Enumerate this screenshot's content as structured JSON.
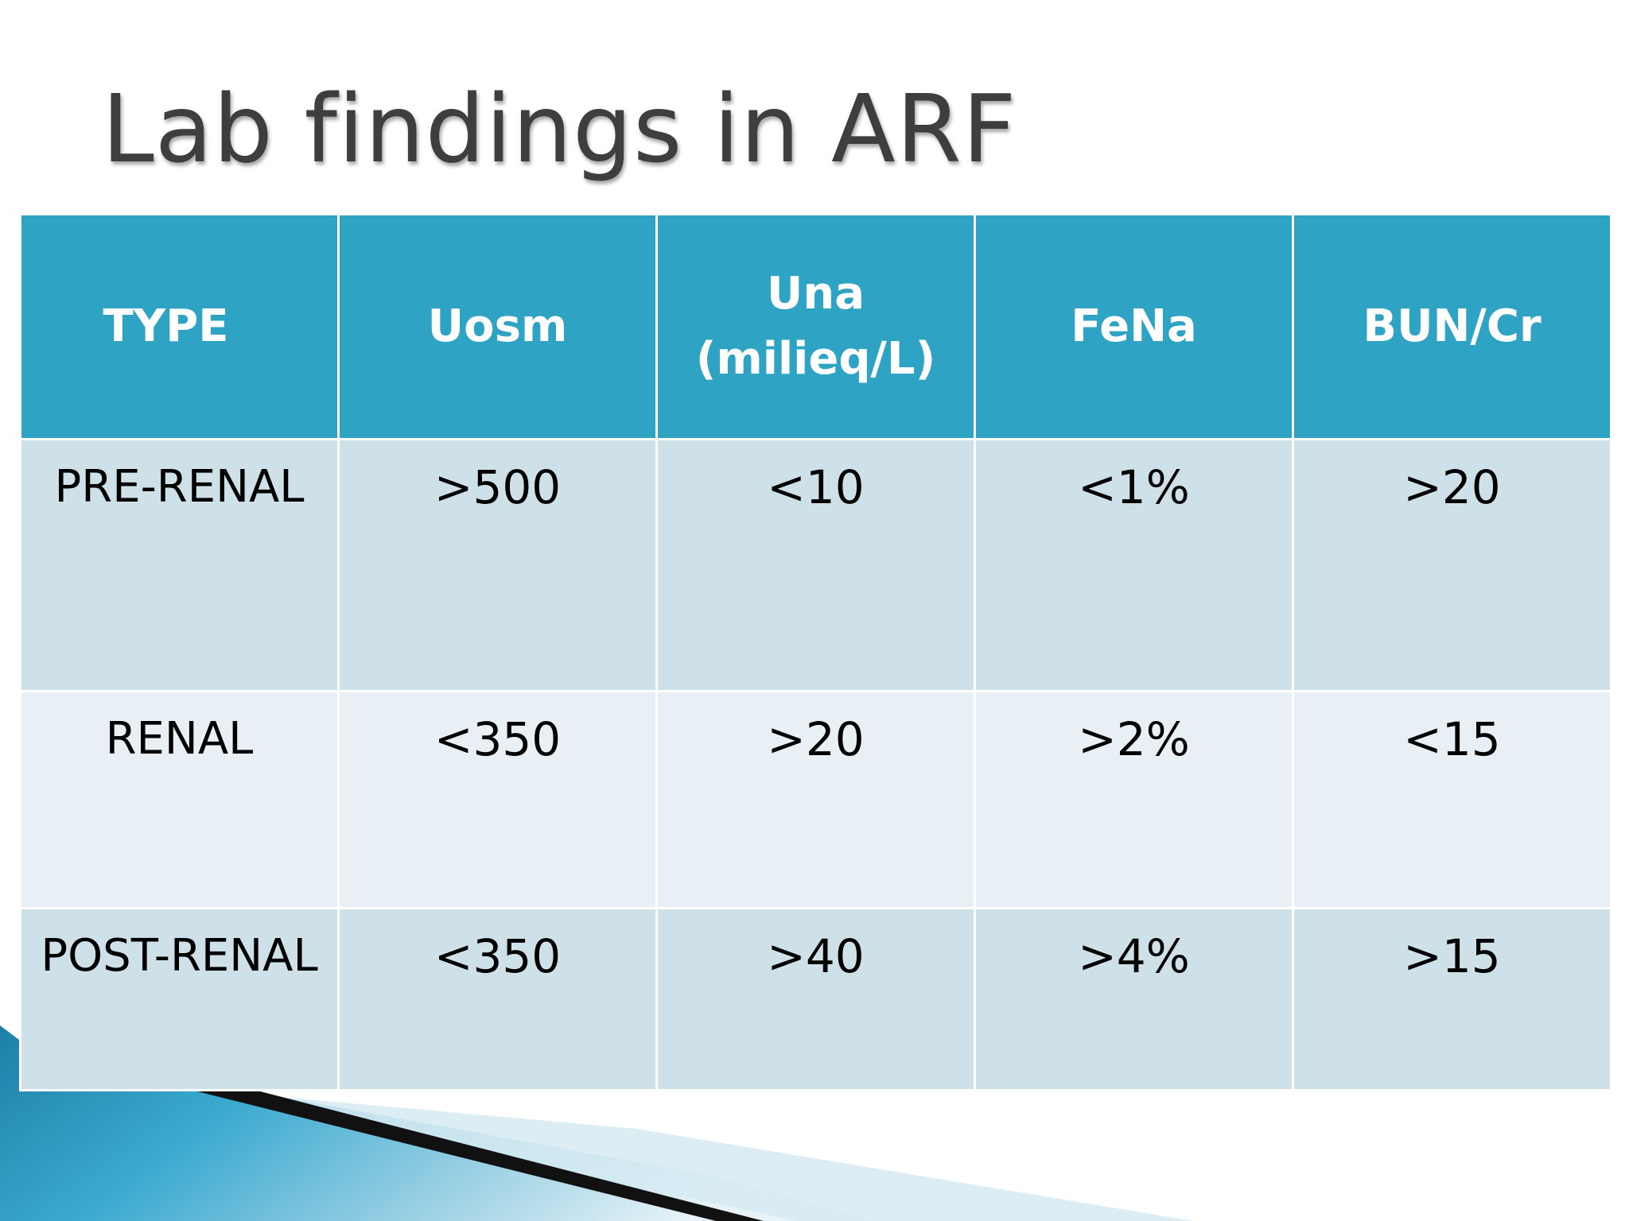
{
  "slide": {
    "title": "Lab findings in ARF"
  },
  "table": {
    "headers": {
      "type": "TYPE",
      "uosm": "Uosm",
      "una_line1": "Una",
      "una_line2": "(milieq/L)",
      "fena": "FeNa",
      "bun_cr": "BUN/Cr"
    },
    "rows": [
      {
        "type": "PRE-RENAL",
        "uosm": ">500",
        "una": "<10",
        "fena": "<1%",
        "bun_cr": ">20"
      },
      {
        "type": "RENAL",
        "uosm": "<350",
        "una": ">20",
        "fena": ">2%",
        "bun_cr": "<15"
      },
      {
        "type": "POST-RENAL",
        "uosm": "<350",
        "una": ">40",
        "fena": ">4%",
        "bun_cr": ">15"
      }
    ]
  },
  "colors": {
    "header_bg": "#2ea3c4",
    "row_dark": "#cfe1e8",
    "row_light": "#e9f0f5",
    "title_text": "#3e3e3e",
    "accent_blue": "#1d7fa6"
  }
}
